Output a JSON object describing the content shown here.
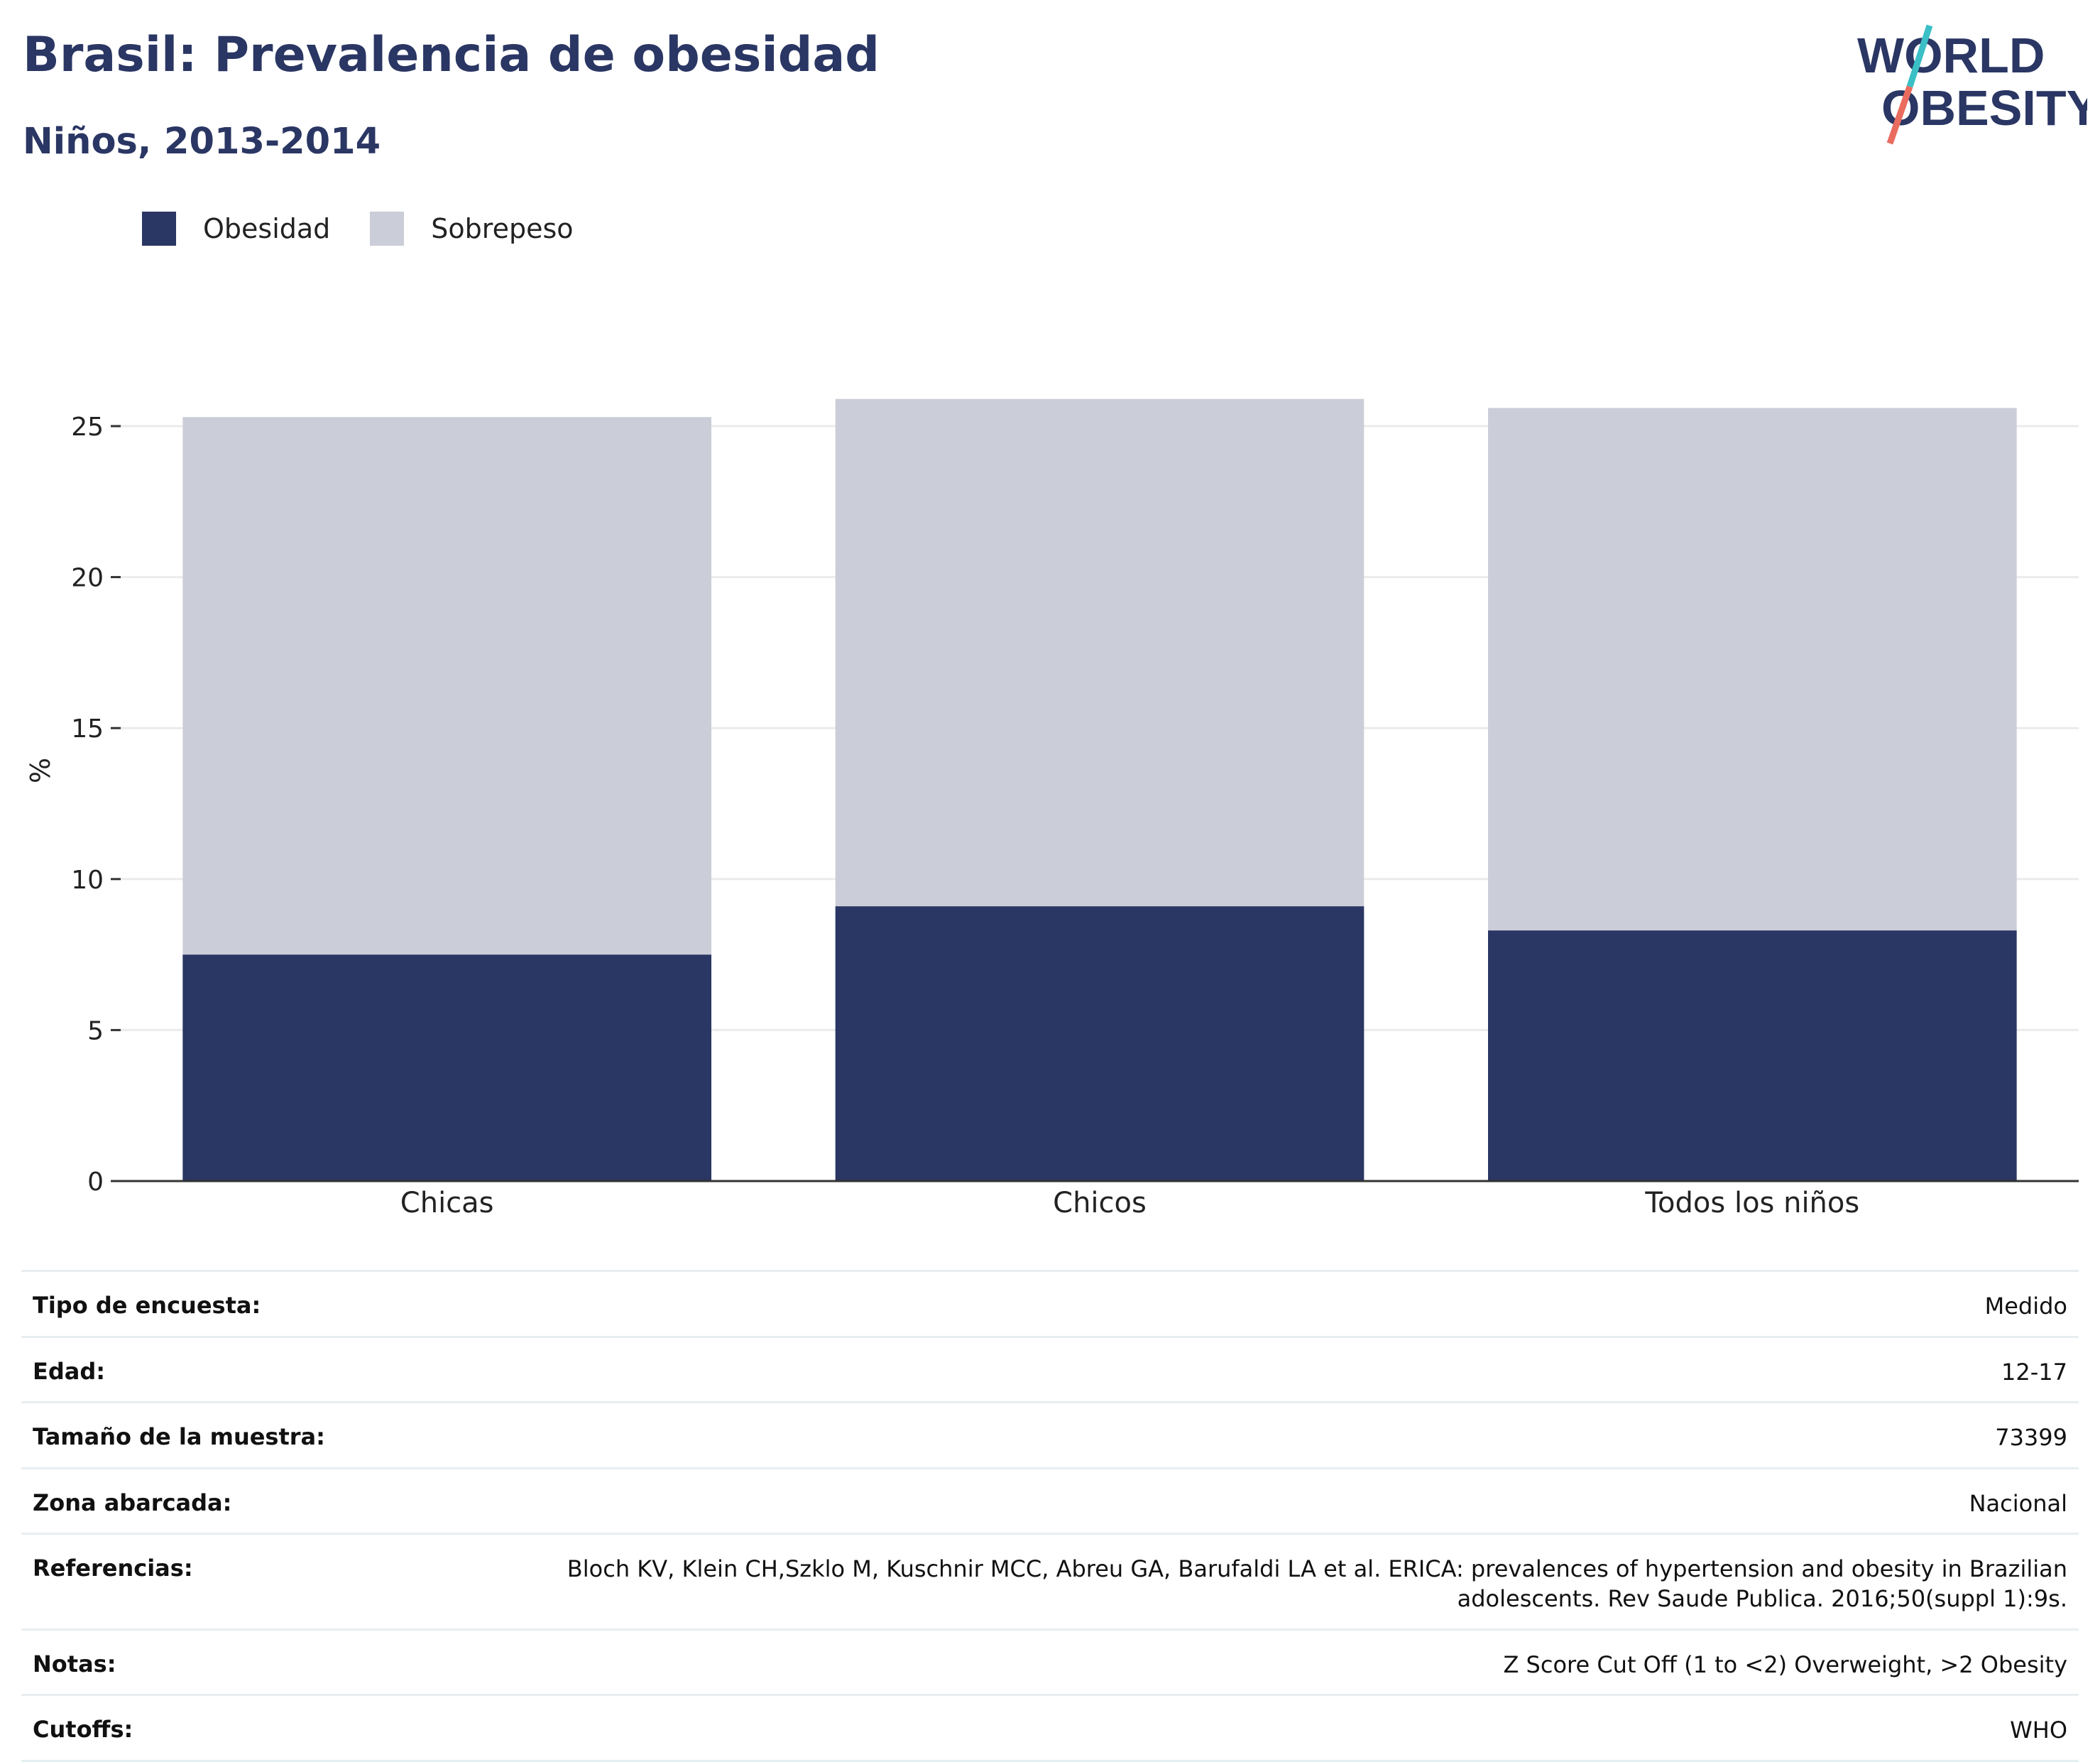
{
  "header": {
    "title": "Brasil: Prevalencia de obesidad",
    "subtitle": "Niños, 2013-2014"
  },
  "logo": {
    "line1": "WORLD",
    "line2": "OBESITY",
    "colors": {
      "text": "#2a3663",
      "slash_top": "#3bbfc6",
      "slash_bottom": "#ea6c5f"
    }
  },
  "colors": {
    "obesidad": "#2a3663",
    "sobrepeso": "#cbcdd8",
    "axis": "#333333",
    "grid": "#ebebeb"
  },
  "chart_data": {
    "type": "bar",
    "stacked": true,
    "categories": [
      "Chicas",
      "Chicos",
      "Todos los niños"
    ],
    "series": [
      {
        "name": "Obesidad",
        "values": [
          7.5,
          9.1,
          8.3
        ]
      },
      {
        "name": "Sobrepeso",
        "values": [
          17.8,
          16.8,
          17.3
        ]
      }
    ],
    "ylabel": "%",
    "ylim": [
      0,
      27
    ],
    "yticks": [
      0,
      5,
      10,
      15,
      20,
      25
    ],
    "grid": true,
    "legend": "top-left"
  },
  "meta": [
    {
      "label": "Tipo de encuesta:",
      "value": "Medido"
    },
    {
      "label": "Edad:",
      "value": "12-17"
    },
    {
      "label": "Tamaño de la muestra:",
      "value": "73399"
    },
    {
      "label": "Zona abarcada:",
      "value": "Nacional"
    },
    {
      "label": "Referencias:",
      "value": "Bloch KV, Klein CH,Szklo M, Kuschnir MCC, Abreu GA, Barufaldi LA et al. ERICA: prevalences of hypertension and obesity in Brazilian adolescents. Rev Saude Publica. 2016;50(suppl 1):9s."
    },
    {
      "label": "Notas:",
      "value": "Z Score Cut Off (1 to <2) Overweight, >2 Obesity"
    },
    {
      "label": "Cutoffs:",
      "value": "WHO"
    }
  ]
}
